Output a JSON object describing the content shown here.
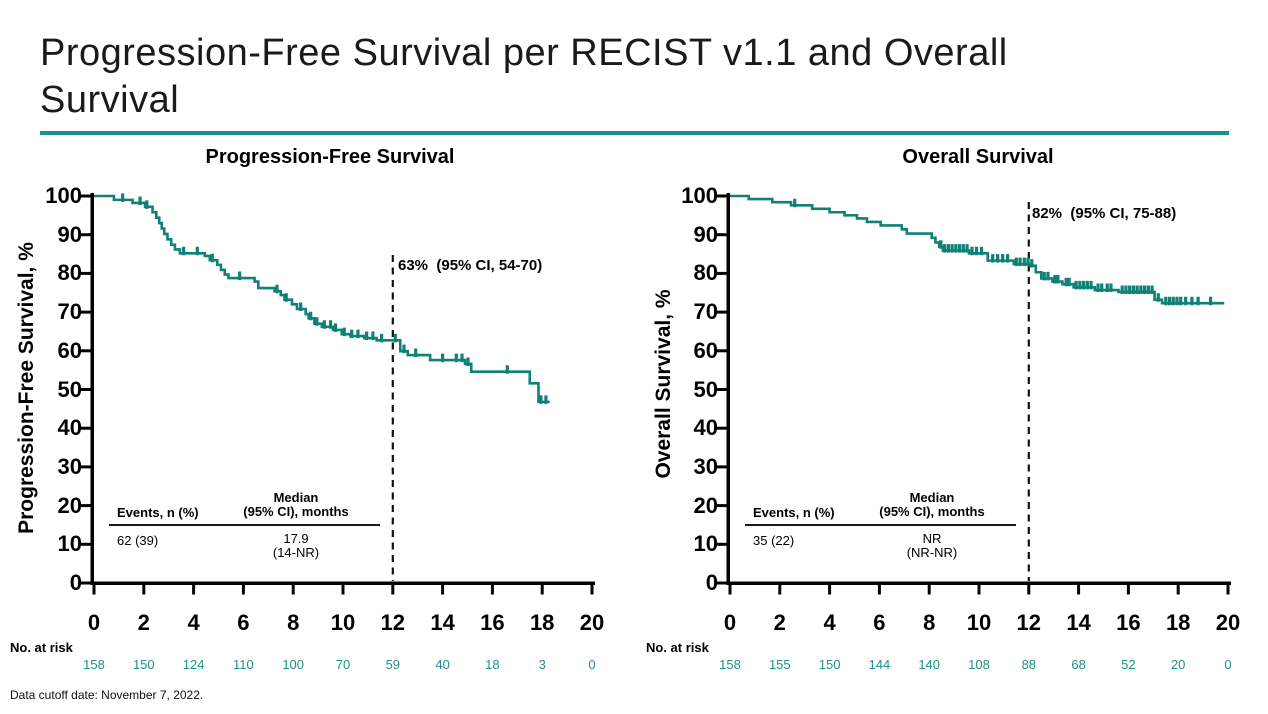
{
  "slide": {
    "title_lines": [
      "Progression-Free Survival per RECIST v1.1 and Overall",
      "Survival"
    ],
    "footer": "Data cutoff date: November 7, 2022.",
    "colors": {
      "curve": "#0F8177",
      "title_rule": "#1A918B",
      "at_risk_values": "#20908A",
      "axis": "#000000",
      "dashed_line": "#111111"
    }
  },
  "chart_data": [
    {
      "type": "line",
      "subtype": "kaplan-meier-step",
      "title": "Progression-Free Survival",
      "ylabel": "Progression-Free Survival, %",
      "xlabel": "",
      "xlim": [
        0,
        20
      ],
      "ylim": [
        0,
        100
      ],
      "grid": false,
      "xticks": [
        0,
        2,
        4,
        6,
        8,
        10,
        12,
        14,
        16,
        18,
        20
      ],
      "yticks": [
        0,
        10,
        20,
        30,
        40,
        50,
        60,
        70,
        80,
        90,
        100
      ],
      "steps": [
        [
          0,
          100
        ],
        [
          0.8,
          99
        ],
        [
          1.55,
          98.2
        ],
        [
          2.05,
          97.2
        ],
        [
          2.35,
          95.8
        ],
        [
          2.5,
          94.4
        ],
        [
          2.62,
          93
        ],
        [
          2.72,
          91.6
        ],
        [
          2.82,
          90.2
        ],
        [
          2.95,
          88.8
        ],
        [
          3.1,
          87.4
        ],
        [
          3.25,
          86.2
        ],
        [
          3.45,
          85.2
        ],
        [
          4.45,
          84.5
        ],
        [
          4.65,
          83.4
        ],
        [
          4.95,
          82.2
        ],
        [
          5.1,
          80.9
        ],
        [
          5.25,
          79.7
        ],
        [
          5.4,
          78.8
        ],
        [
          6.45,
          77.9
        ],
        [
          6.6,
          76.2
        ],
        [
          7.25,
          75.4
        ],
        [
          7.5,
          74.4
        ],
        [
          7.65,
          73.2
        ],
        [
          7.95,
          72
        ],
        [
          8.15,
          70.8
        ],
        [
          8.5,
          69.5
        ],
        [
          8.62,
          68.4
        ],
        [
          8.85,
          67
        ],
        [
          9.15,
          66.2
        ],
        [
          9.6,
          65.4
        ],
        [
          9.95,
          64.3
        ],
        [
          10.3,
          63.8
        ],
        [
          10.85,
          63.3
        ],
        [
          11.35,
          62.7
        ],
        [
          12.3,
          59.9
        ],
        [
          12.6,
          58.9
        ],
        [
          13.5,
          57.6
        ],
        [
          14.9,
          56.6
        ],
        [
          15.15,
          54.6
        ],
        [
          17.5,
          51.6
        ],
        [
          17.85,
          46.8
        ]
      ],
      "curve_end_x": 18.3,
      "censor_marks": [
        [
          1.15,
          99
        ],
        [
          1.85,
          98.2
        ],
        [
          2.12,
          97.2
        ],
        [
          3.6,
          85.2
        ],
        [
          4.15,
          85.2
        ],
        [
          4.75,
          83.4
        ],
        [
          5.85,
          78.8
        ],
        [
          7.35,
          75.4
        ],
        [
          7.72,
          73.2
        ],
        [
          8.3,
          70.8
        ],
        [
          8.7,
          68.4
        ],
        [
          8.95,
          67
        ],
        [
          9.25,
          66.2
        ],
        [
          9.5,
          66.2
        ],
        [
          9.7,
          65.4
        ],
        [
          10.05,
          64.3
        ],
        [
          10.35,
          63.8
        ],
        [
          10.6,
          63.8
        ],
        [
          10.95,
          63.3
        ],
        [
          11.2,
          63.3
        ],
        [
          11.55,
          62.7
        ],
        [
          12.1,
          62.7
        ],
        [
          12.45,
          59.9
        ],
        [
          12.92,
          58.9
        ],
        [
          14.0,
          57.6
        ],
        [
          14.55,
          57.6
        ],
        [
          14.78,
          57.6
        ],
        [
          15.02,
          56.6
        ],
        [
          16.6,
          54.6
        ],
        [
          17.95,
          46.8
        ],
        [
          18.15,
          46.8
        ]
      ],
      "milestone": {
        "x": 12,
        "label": "63%  (95% CI, 54-70)"
      },
      "stats": {
        "col1_header": "Events, n (%)",
        "col2_header_1": "Median",
        "col2_header_2": "(95% CI), months",
        "col1_value": "62 (39)",
        "col2_value_1": "17.9",
        "col2_value_2": "(14-NR)"
      },
      "at_risk_label": "No. at risk",
      "at_risk": [
        158,
        150,
        124,
        110,
        100,
        70,
        59,
        40,
        18,
        3,
        0
      ]
    },
    {
      "type": "line",
      "subtype": "kaplan-meier-step",
      "title": "Overall Survival",
      "ylabel": "Overall Survival, %",
      "xlabel": "",
      "xlim": [
        0,
        20
      ],
      "ylim": [
        0,
        100
      ],
      "grid": false,
      "xticks": [
        0,
        2,
        4,
        6,
        8,
        10,
        12,
        14,
        16,
        18,
        20
      ],
      "yticks": [
        0,
        10,
        20,
        30,
        40,
        50,
        60,
        70,
        80,
        90,
        100
      ],
      "steps": [
        [
          0,
          100
        ],
        [
          0.75,
          99.2
        ],
        [
          1.7,
          98.4
        ],
        [
          2.45,
          97.6
        ],
        [
          3.3,
          96.7
        ],
        [
          4.0,
          95.8
        ],
        [
          4.6,
          95.0
        ],
        [
          5.1,
          94.2
        ],
        [
          5.5,
          93.3
        ],
        [
          6.05,
          92.4
        ],
        [
          6.9,
          91.4
        ],
        [
          7.1,
          90.3
        ],
        [
          8.1,
          89.2
        ],
        [
          8.25,
          88.0
        ],
        [
          8.4,
          86.9
        ],
        [
          8.55,
          85.9
        ],
        [
          9.6,
          85.2
        ],
        [
          10.35,
          83.3
        ],
        [
          11.4,
          82.4
        ],
        [
          12.05,
          82.0
        ],
        [
          12.28,
          80.3
        ],
        [
          12.5,
          78.7
        ],
        [
          12.95,
          77.9
        ],
        [
          13.35,
          77.2
        ],
        [
          13.8,
          76.4
        ],
        [
          14.65,
          75.7
        ],
        [
          15.6,
          75.2
        ],
        [
          17.05,
          73.2
        ],
        [
          17.35,
          72.3
        ]
      ],
      "curve_end_x": 19.85,
      "censor_marks": [
        [
          2.6,
          97.6
        ],
        [
          8.47,
          86.9
        ],
        [
          8.62,
          85.9
        ],
        [
          8.77,
          85.9
        ],
        [
          8.92,
          85.9
        ],
        [
          9.07,
          85.9
        ],
        [
          9.22,
          85.9
        ],
        [
          9.37,
          85.9
        ],
        [
          9.52,
          85.9
        ],
        [
          9.72,
          85.2
        ],
        [
          9.9,
          85.2
        ],
        [
          10.1,
          85.2
        ],
        [
          10.55,
          83.3
        ],
        [
          10.75,
          83.3
        ],
        [
          10.95,
          83.3
        ],
        [
          11.15,
          83.3
        ],
        [
          11.5,
          82.4
        ],
        [
          11.65,
          82.4
        ],
        [
          11.82,
          82.4
        ],
        [
          11.97,
          82.4
        ],
        [
          12.12,
          82.0
        ],
        [
          12.62,
          78.7
        ],
        [
          12.77,
          78.7
        ],
        [
          13.05,
          77.9
        ],
        [
          13.17,
          77.9
        ],
        [
          13.5,
          77.2
        ],
        [
          13.62,
          77.2
        ],
        [
          13.9,
          76.4
        ],
        [
          14.05,
          76.4
        ],
        [
          14.2,
          76.4
        ],
        [
          14.35,
          76.4
        ],
        [
          14.5,
          76.4
        ],
        [
          14.78,
          75.7
        ],
        [
          14.93,
          75.7
        ],
        [
          15.15,
          75.7
        ],
        [
          15.3,
          75.7
        ],
        [
          15.75,
          75.2
        ],
        [
          15.9,
          75.2
        ],
        [
          16.05,
          75.2
        ],
        [
          16.2,
          75.2
        ],
        [
          16.35,
          75.2
        ],
        [
          16.5,
          75.2
        ],
        [
          16.65,
          75.2
        ],
        [
          16.8,
          75.2
        ],
        [
          16.95,
          75.2
        ],
        [
          17.2,
          73.2
        ],
        [
          17.5,
          72.3
        ],
        [
          17.65,
          72.3
        ],
        [
          17.8,
          72.3
        ],
        [
          17.95,
          72.3
        ],
        [
          18.1,
          72.3
        ],
        [
          18.3,
          72.3
        ],
        [
          18.55,
          72.3
        ],
        [
          18.8,
          72.3
        ],
        [
          19.3,
          72.3
        ]
      ],
      "milestone": {
        "x": 12,
        "label": "82%  (95% CI, 75-88)"
      },
      "stats": {
        "col1_header": "Events, n (%)",
        "col2_header_1": "Median",
        "col2_header_2": "(95% CI), months",
        "col1_value": "35 (22)",
        "col2_value_1": "NR",
        "col2_value_2": "(NR-NR)"
      },
      "at_risk_label": "No. at risk",
      "at_risk": [
        158,
        155,
        150,
        144,
        140,
        108,
        88,
        68,
        52,
        20,
        0
      ]
    }
  ]
}
